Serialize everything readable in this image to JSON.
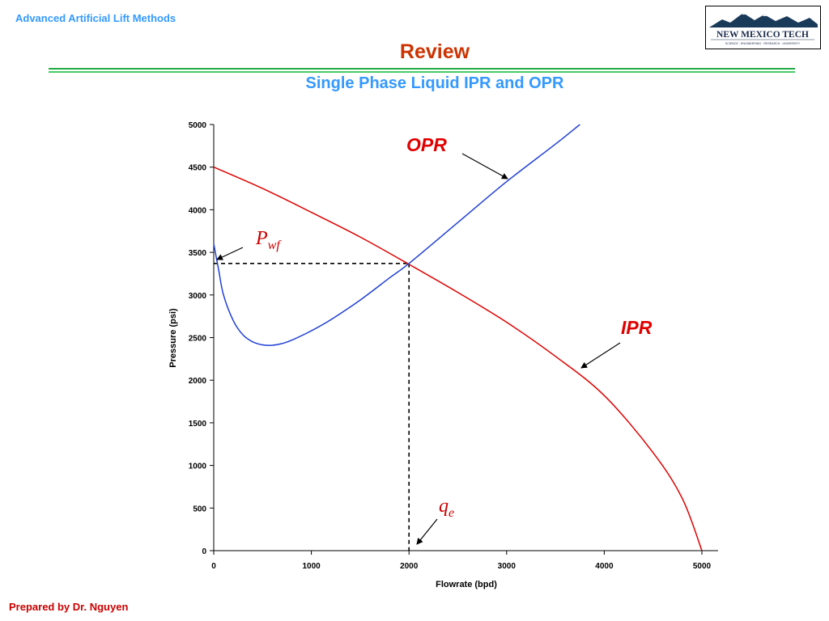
{
  "header": {
    "course": "Advanced Artificial Lift Methods",
    "logo_text": "NEW MEXICO TECH",
    "logo_tagline": "SCIENCE · ENGINEERING · RESEARCH · UNIVERSITY"
  },
  "slide": {
    "title": "Review",
    "subtitle": "Single Phase Liquid IPR and OPR"
  },
  "footer": {
    "author": "Prepared by Dr. Nguyen"
  },
  "colors": {
    "ipr": "#e00000",
    "opr": "#1f3fd6",
    "accent_blue": "#3399ff",
    "title_red": "#cc3300"
  },
  "chart_data": {
    "type": "line",
    "xlabel": "Flowrate (bpd)",
    "ylabel": "Pressure (psi)",
    "xlim": [
      0,
      5000
    ],
    "ylim": [
      0,
      5000
    ],
    "xticks": [
      0,
      1000,
      2000,
      3000,
      4000,
      5000
    ],
    "yticks": [
      0,
      500,
      1000,
      1500,
      2000,
      2500,
      3000,
      3500,
      4000,
      4500,
      5000
    ],
    "grid": false,
    "series": [
      {
        "name": "IPR",
        "x": [
          0,
          500,
          1000,
          1500,
          2000,
          2500,
          3000,
          3500,
          4000,
          4500,
          4800,
          5000
        ],
        "y": [
          4500,
          4250,
          3970,
          3680,
          3360,
          3030,
          2680,
          2280,
          1820,
          1150,
          610,
          0
        ]
      },
      {
        "name": "OPR",
        "x": [
          0,
          50,
          100,
          200,
          300,
          400,
          500,
          600,
          700,
          800,
          1000,
          1200,
          1500,
          1800,
          2000,
          2500,
          3000,
          3500,
          3750
        ],
        "y": [
          3600,
          3300,
          3000,
          2700,
          2530,
          2450,
          2415,
          2410,
          2430,
          2470,
          2580,
          2710,
          2940,
          3200,
          3370,
          3850,
          4330,
          4770,
          5000
        ]
      }
    ],
    "annotations": {
      "ipr_label": "IPR",
      "opr_label": "OPR",
      "pwf_symbol": "P",
      "pwf_subscript": "wf",
      "qe_symbol": "q",
      "qe_subscript": "e",
      "intersection": {
        "x": 2000,
        "y": 3370
      }
    }
  }
}
